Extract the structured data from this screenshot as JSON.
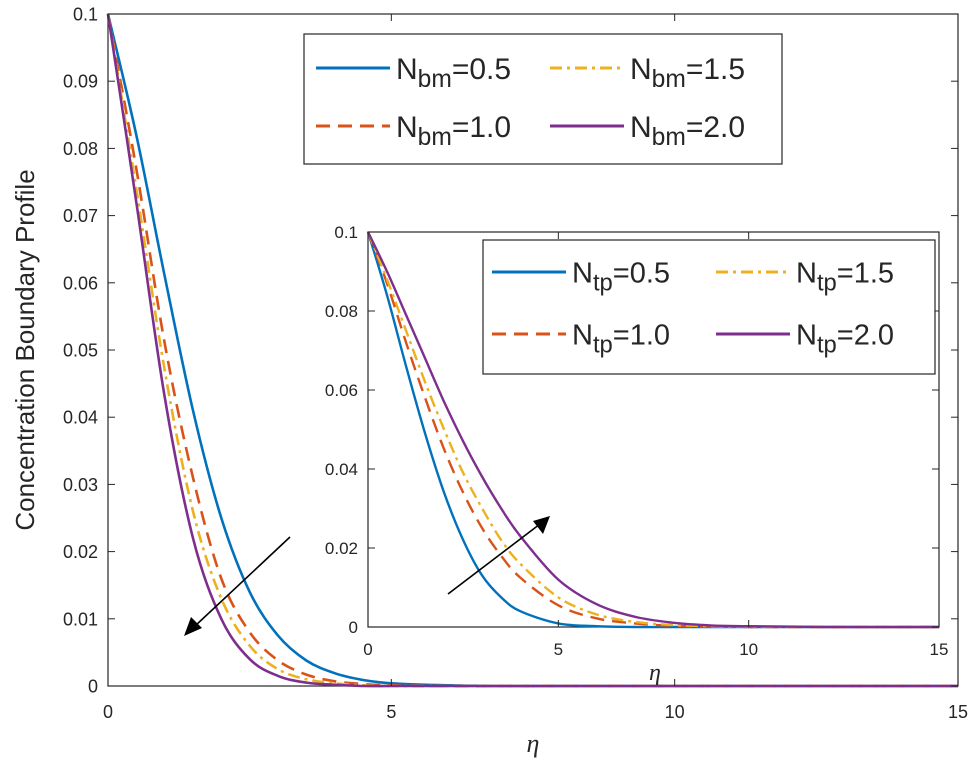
{
  "chart_data": [
    {
      "id": "main",
      "type": "line",
      "title": "",
      "xlabel": "η",
      "ylabel": "Concentration Boundary Profile",
      "xlim": [
        0,
        15
      ],
      "ylim": [
        0,
        0.1
      ],
      "xticks": [
        0,
        5,
        10,
        15
      ],
      "yticks": [
        0,
        0.01,
        0.02,
        0.03,
        0.04,
        0.05,
        0.06,
        0.07,
        0.08,
        0.09,
        0.1
      ],
      "xtick_labels": [
        "0",
        "5",
        "10",
        "15"
      ],
      "ytick_labels": [
        "0",
        "0.01",
        "0.02",
        "0.03",
        "0.04",
        "0.05",
        "0.06",
        "0.07",
        "0.08",
        "0.09",
        "0.1"
      ],
      "grid": false,
      "legend_position": "top-right",
      "annotation": "arrow pointing toward increasing N_bm (curves decrease)",
      "x": [
        0,
        0.5,
        1,
        1.5,
        2,
        2.5,
        3,
        3.5,
        4,
        4.5,
        5,
        6,
        7,
        8,
        10,
        12,
        15
      ],
      "series": [
        {
          "name": "N_bm=0.5",
          "param_symbol": "N",
          "param_sub": "bm",
          "param_value": "0.5",
          "color": "#0072BD",
          "dash": "solid",
          "values": [
            0.1,
            0.082,
            0.061,
            0.041,
            0.025,
            0.014,
            0.0075,
            0.0038,
            0.0019,
            0.0009,
            0.0004,
            0.0001,
            0,
            0,
            0,
            0,
            0
          ]
        },
        {
          "name": "N_bm=1.0",
          "param_symbol": "N",
          "param_sub": "bm",
          "param_value": "1.0",
          "color": "#D95319",
          "dash": "dashed",
          "values": [
            0.1,
            0.077,
            0.051,
            0.031,
            0.016,
            0.008,
            0.0038,
            0.0017,
            0.0007,
            0.0003,
            0.0001,
            0,
            0,
            0,
            0,
            0,
            0
          ]
        },
        {
          "name": "N_bm=1.5",
          "param_symbol": "N",
          "param_sub": "bm",
          "param_value": "1.5",
          "color": "#EDB120",
          "dash": "dashdot",
          "values": [
            0.1,
            0.074,
            0.047,
            0.026,
            0.013,
            0.006,
            0.0025,
            0.001,
            0.0004,
            0.0001,
            0,
            0,
            0,
            0,
            0,
            0,
            0
          ]
        },
        {
          "name": "N_bm=2.0",
          "param_symbol": "N",
          "param_sub": "bm",
          "param_value": "2.0",
          "color": "#7E2F8E",
          "dash": "solid",
          "values": [
            0.1,
            0.072,
            0.043,
            0.022,
            0.01,
            0.004,
            0.0015,
            0.0005,
            0.0002,
            0,
            0,
            0,
            0,
            0,
            0,
            0,
            0
          ]
        }
      ]
    },
    {
      "id": "inset",
      "type": "line",
      "title": "",
      "xlabel": "η",
      "ylabel": "",
      "xlim": [
        0,
        15
      ],
      "ylim": [
        0,
        0.1
      ],
      "xticks": [
        0,
        5,
        10,
        15
      ],
      "yticks": [
        0,
        0.02,
        0.04,
        0.06,
        0.08,
        0.1
      ],
      "xtick_labels": [
        "0",
        "5",
        "10",
        "15"
      ],
      "ytick_labels": [
        "0",
        "0.02",
        "0.04",
        "0.06",
        "0.08",
        "0.1"
      ],
      "grid": false,
      "legend_position": "top-right",
      "annotation": "arrow pointing toward increasing N_tp (curves increase)",
      "x": [
        0,
        0.5,
        1,
        1.5,
        2,
        2.5,
        3,
        3.5,
        4,
        5,
        6,
        7,
        8,
        9,
        10,
        12,
        15
      ],
      "series": [
        {
          "name": "N_tp=0.5",
          "param_symbol": "N",
          "param_sub": "tp",
          "param_value": "0.5",
          "color": "#0072BD",
          "dash": "solid",
          "values": [
            0.1,
            0.084,
            0.066,
            0.049,
            0.034,
            0.022,
            0.013,
            0.0075,
            0.004,
            0.0009,
            0.0002,
            0,
            0,
            0,
            0,
            0,
            0
          ]
        },
        {
          "name": "N_tp=1.0",
          "param_symbol": "N",
          "param_sub": "tp",
          "param_value": "1.0",
          "color": "#D95319",
          "dash": "dashed",
          "values": [
            0.1,
            0.087,
            0.072,
            0.058,
            0.045,
            0.034,
            0.025,
            0.018,
            0.0125,
            0.0055,
            0.0022,
            0.0009,
            0.0003,
            0.0001,
            0,
            0,
            0
          ]
        },
        {
          "name": "N_tp=1.5",
          "param_symbol": "N",
          "param_sub": "tp",
          "param_value": "1.5",
          "color": "#EDB120",
          "dash": "dashdot",
          "values": [
            0.1,
            0.088,
            0.075,
            0.062,
            0.05,
            0.039,
            0.03,
            0.022,
            0.016,
            0.0075,
            0.0032,
            0.0013,
            0.0005,
            0.0002,
            0.0001,
            0,
            0
          ]
        },
        {
          "name": "N_tp=2.0",
          "param_symbol": "N",
          "param_sub": "tp",
          "param_value": "2.0",
          "color": "#7E2F8E",
          "dash": "solid",
          "values": [
            0.1,
            0.09,
            0.079,
            0.068,
            0.057,
            0.047,
            0.038,
            0.03,
            0.023,
            0.012,
            0.0058,
            0.0026,
            0.0011,
            0.0004,
            0.0002,
            0,
            0
          ]
        }
      ]
    }
  ]
}
